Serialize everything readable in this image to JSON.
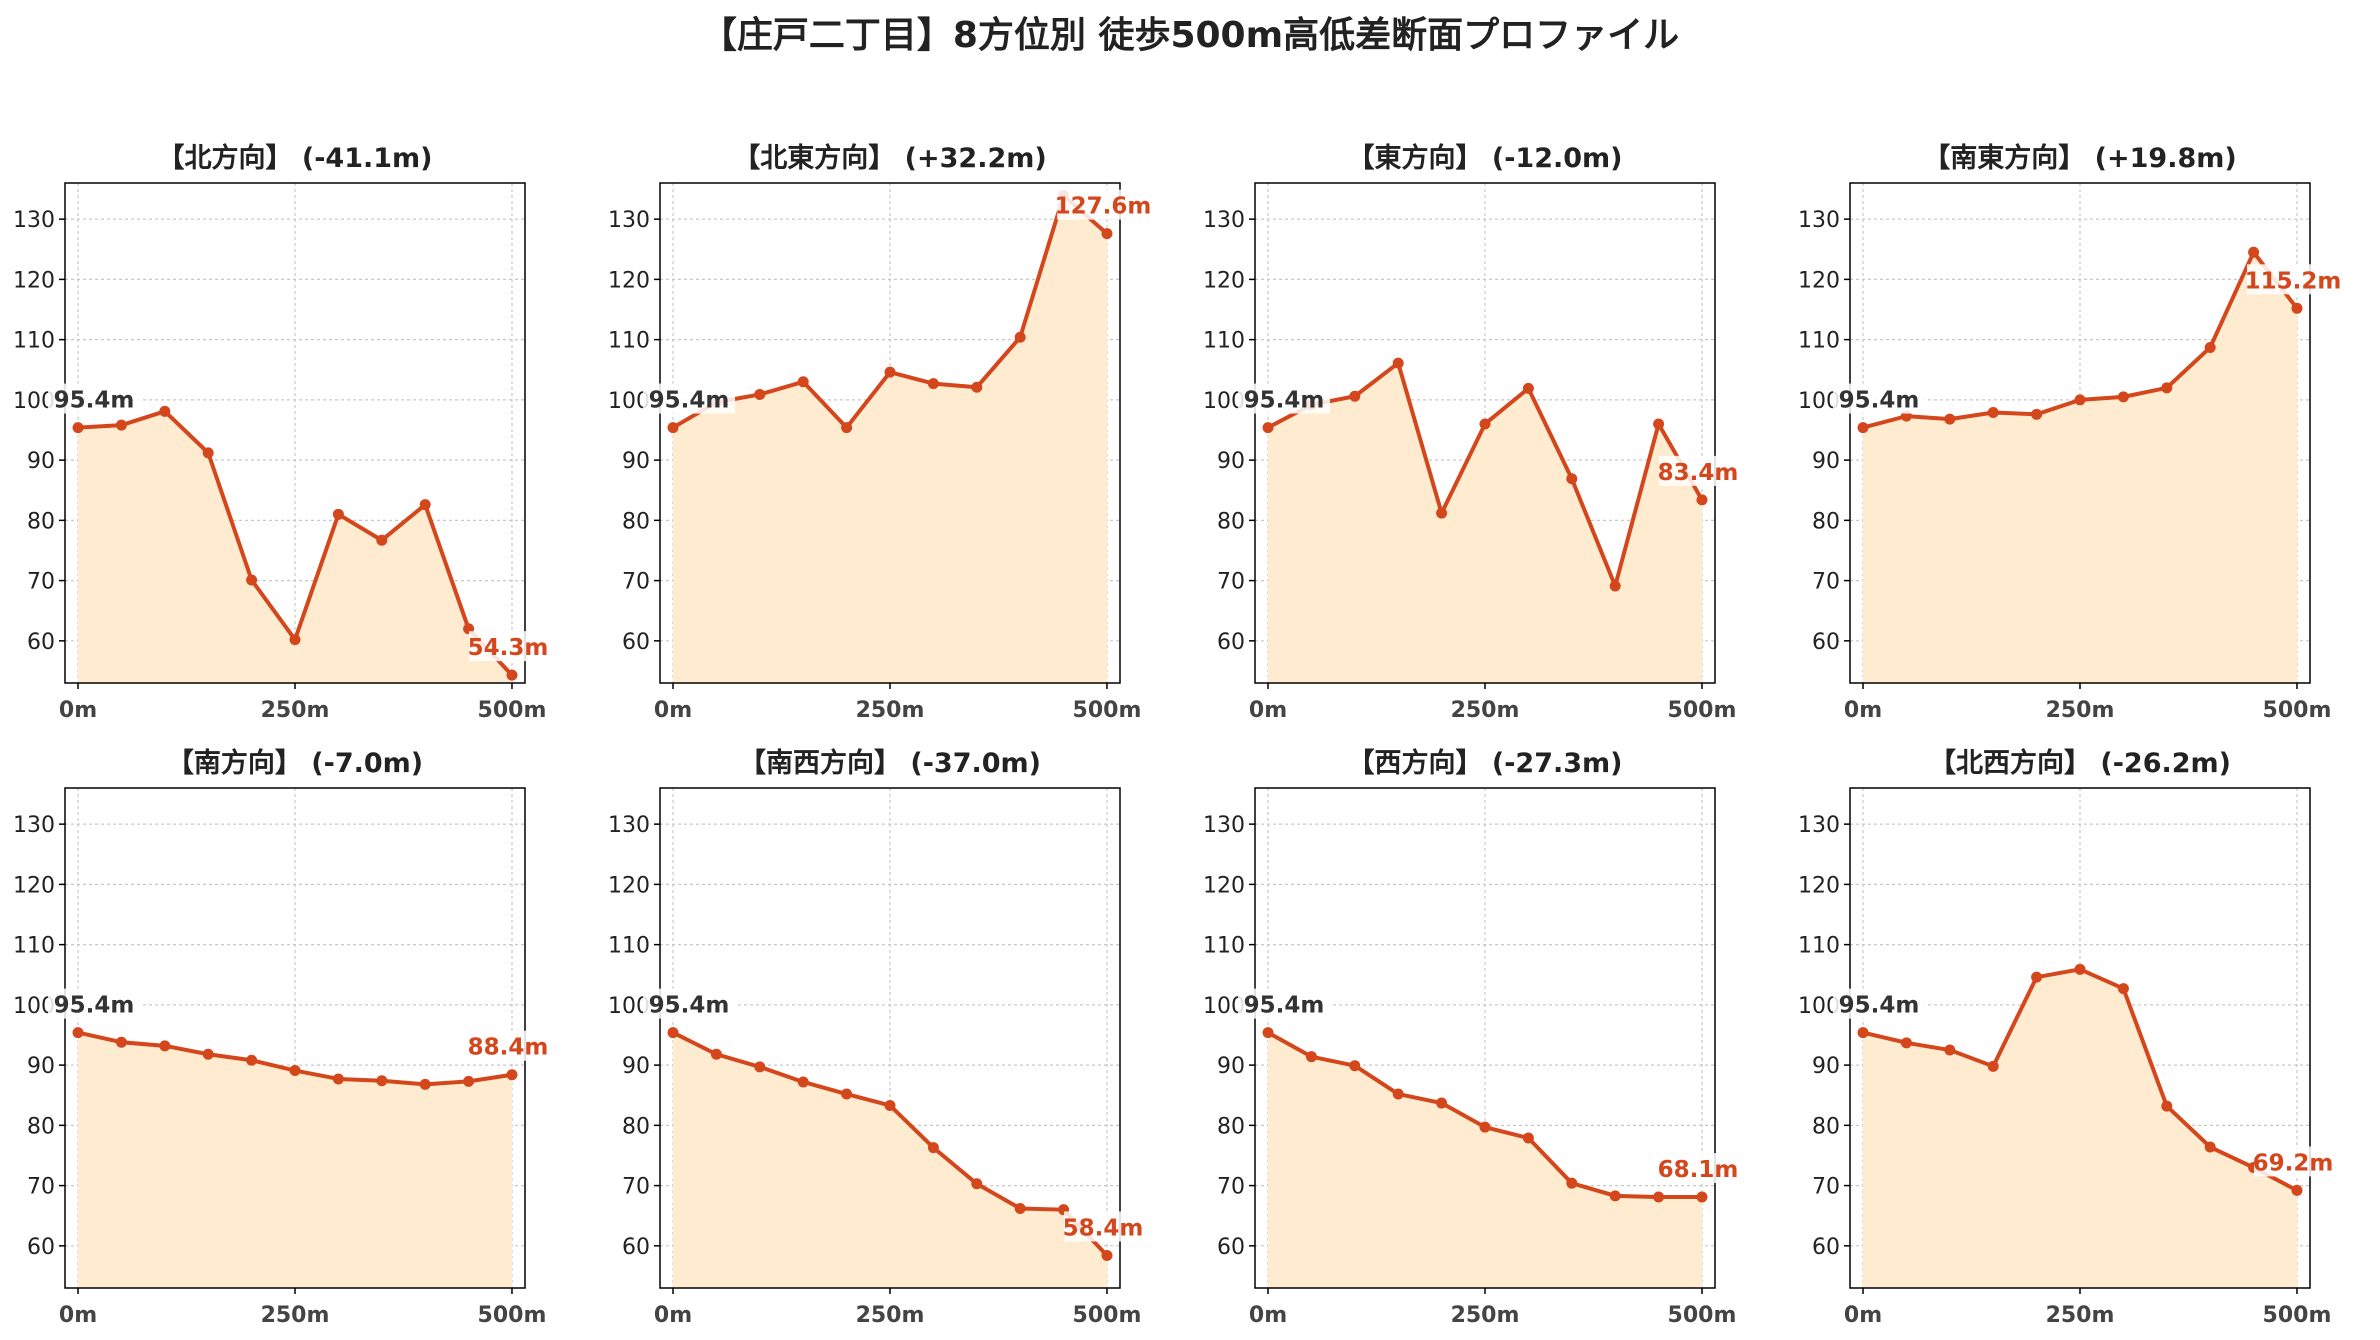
{
  "suptitle": "【庄戸二丁目】8方位別 徒歩500m高低差断面プロファイル",
  "colors": {
    "line": "#d4461b",
    "fill": "#ffecd0",
    "start_label": "#333333",
    "end_label": "#d4461b",
    "grid": "#c8c8c8"
  },
  "chart_data": [
    {
      "type": "line",
      "title": "【北方向】 (-41.1m)",
      "x": [
        0,
        50,
        100,
        150,
        200,
        250,
        300,
        350,
        400,
        450,
        500
      ],
      "y": [
        95.4,
        95.8,
        98.1,
        91.2,
        70.1,
        60.2,
        81.0,
        76.7,
        82.6,
        62.0,
        54.3
      ],
      "start_label": "95.4m",
      "end_label": "54.3m",
      "xticks": [
        "0m",
        "250m",
        "500m"
      ],
      "yticks": [
        60,
        70,
        80,
        90,
        100,
        110,
        120,
        130
      ],
      "xlim": [
        -15,
        515
      ],
      "ylim": [
        53,
        136
      ],
      "grid": true
    },
    {
      "type": "line",
      "title": "【北東方向】 (+32.2m)",
      "x": [
        0,
        50,
        100,
        150,
        200,
        250,
        300,
        350,
        400,
        450,
        500
      ],
      "y": [
        95.4,
        99.6,
        100.9,
        103.0,
        95.4,
        104.6,
        102.7,
        102.1,
        110.4,
        133.9,
        127.6
      ],
      "start_label": "95.4m",
      "end_label": "127.6m",
      "xticks": [
        "0m",
        "250m",
        "500m"
      ],
      "yticks": [
        60,
        70,
        80,
        90,
        100,
        110,
        120,
        130
      ],
      "xlim": [
        -15,
        515
      ],
      "ylim": [
        53,
        136
      ],
      "grid": true
    },
    {
      "type": "line",
      "title": "【東方向】 (-12.0m)",
      "x": [
        0,
        50,
        100,
        150,
        200,
        250,
        300,
        350,
        400,
        450,
        500
      ],
      "y": [
        95.4,
        99.2,
        100.6,
        106.1,
        81.2,
        96.0,
        101.9,
        86.9,
        69.1,
        96.0,
        83.4
      ],
      "start_label": "95.4m",
      "end_label": "83.4m",
      "xticks": [
        "0m",
        "250m",
        "500m"
      ],
      "yticks": [
        60,
        70,
        80,
        90,
        100,
        110,
        120,
        130
      ],
      "xlim": [
        -15,
        515
      ],
      "ylim": [
        53,
        136
      ],
      "grid": true
    },
    {
      "type": "line",
      "title": "【南東方向】 (+19.8m)",
      "x": [
        0,
        50,
        100,
        150,
        200,
        250,
        300,
        350,
        400,
        450,
        500
      ],
      "y": [
        95.4,
        97.3,
        96.8,
        97.9,
        97.6,
        100.0,
        100.5,
        102.0,
        108.7,
        124.5,
        115.2
      ],
      "start_label": "95.4m",
      "end_label": "115.2m",
      "xticks": [
        "0m",
        "250m",
        "500m"
      ],
      "yticks": [
        60,
        70,
        80,
        90,
        100,
        110,
        120,
        130
      ],
      "xlim": [
        -15,
        515
      ],
      "ylim": [
        53,
        136
      ],
      "grid": true
    },
    {
      "type": "line",
      "title": "【南方向】 (-7.0m)",
      "x": [
        0,
        50,
        100,
        150,
        200,
        250,
        300,
        350,
        400,
        450,
        500
      ],
      "y": [
        95.4,
        93.8,
        93.2,
        91.8,
        90.8,
        89.1,
        87.7,
        87.4,
        86.8,
        87.3,
        88.4
      ],
      "start_label": "95.4m",
      "end_label": "88.4m",
      "xticks": [
        "0m",
        "250m",
        "500m"
      ],
      "yticks": [
        60,
        70,
        80,
        90,
        100,
        110,
        120,
        130
      ],
      "xlim": [
        -15,
        515
      ],
      "ylim": [
        53,
        136
      ],
      "grid": true
    },
    {
      "type": "line",
      "title": "【南西方向】 (-37.0m)",
      "x": [
        0,
        50,
        100,
        150,
        200,
        250,
        300,
        350,
        400,
        450,
        500
      ],
      "y": [
        95.4,
        91.8,
        89.7,
        87.2,
        85.2,
        83.3,
        76.3,
        70.3,
        66.2,
        66.0,
        58.4
      ],
      "start_label": "95.4m",
      "end_label": "58.4m",
      "xticks": [
        "0m",
        "250m",
        "500m"
      ],
      "yticks": [
        60,
        70,
        80,
        90,
        100,
        110,
        120,
        130
      ],
      "xlim": [
        -15,
        515
      ],
      "ylim": [
        53,
        136
      ],
      "grid": true
    },
    {
      "type": "line",
      "title": "【西方向】 (-27.3m)",
      "x": [
        0,
        50,
        100,
        150,
        200,
        250,
        300,
        350,
        400,
        450,
        500
      ],
      "y": [
        95.4,
        91.4,
        89.9,
        85.2,
        83.7,
        79.7,
        77.9,
        70.4,
        68.3,
        68.1,
        68.1
      ],
      "start_label": "95.4m",
      "end_label": "68.1m",
      "xticks": [
        "0m",
        "250m",
        "500m"
      ],
      "yticks": [
        60,
        70,
        80,
        90,
        100,
        110,
        120,
        130
      ],
      "xlim": [
        -15,
        515
      ],
      "ylim": [
        53,
        136
      ],
      "grid": true
    },
    {
      "type": "line",
      "title": "【北西方向】 (-26.2m)",
      "x": [
        0,
        50,
        100,
        150,
        200,
        250,
        300,
        350,
        400,
        450,
        500
      ],
      "y": [
        95.4,
        93.7,
        92.5,
        89.8,
        104.6,
        105.9,
        102.7,
        83.2,
        76.4,
        73.0,
        69.2
      ],
      "start_label": "95.4m",
      "end_label": "69.2m",
      "xticks": [
        "0m",
        "250m",
        "500m"
      ],
      "yticks": [
        60,
        70,
        80,
        90,
        100,
        110,
        120,
        130
      ],
      "xlim": [
        -15,
        515
      ],
      "ylim": [
        53,
        136
      ],
      "grid": true
    }
  ]
}
